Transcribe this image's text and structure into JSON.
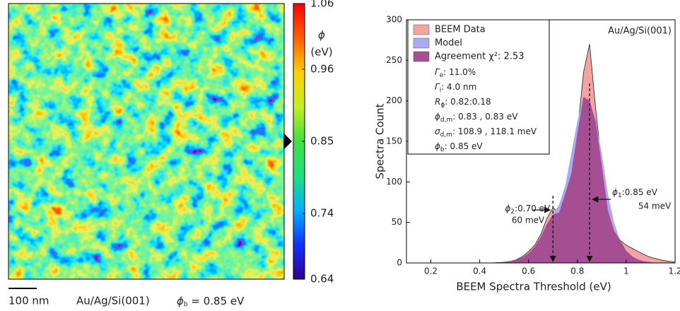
{
  "chart_data": [
    {
      "type": "colorbar",
      "label": "ϕ",
      "unit": "(eV)",
      "ylim": [
        0.64,
        1.06
      ],
      "yticks": [
        0.64,
        0.74,
        0.85,
        0.96,
        1.06
      ],
      "marker": 0.85,
      "colormap": [
        "#30008a",
        "#1030ff",
        "#00b0ff",
        "#20e080",
        "#40e040",
        "#c0f020",
        "#ffd000",
        "#ff6000",
        "#ff0000"
      ],
      "scale_bar": "100 nm",
      "sample": "Au/Ag/Si(001)",
      "phi_b": {
        "symbol": "ϕ",
        "sub": "b",
        "text": " = 0.85 eV"
      }
    },
    {
      "type": "area",
      "x_label": "BEEM Spectra Threshold (eV)",
      "y_label": "Spectra Count",
      "sample": "Au/Ag/Si(001)",
      "xlim": [
        0.1,
        1.2
      ],
      "xticks": [
        0.2,
        0.4,
        0.6,
        0.8,
        1,
        1.2
      ],
      "ylim": [
        0,
        300
      ],
      "yticks": [
        0,
        50,
        100,
        150,
        200,
        250,
        300
      ],
      "x": [
        0.45,
        0.5,
        0.525,
        0.55,
        0.575,
        0.6,
        0.625,
        0.65,
        0.675,
        0.7,
        0.725,
        0.75,
        0.775,
        0.8,
        0.825,
        0.85,
        0.875,
        0.9,
        0.925,
        0.95,
        0.975,
        1.0,
        1.025,
        1.05,
        1.075,
        1.1,
        1.125,
        1.15,
        1.175,
        1.2
      ],
      "series": [
        {
          "name": "BEEM Data",
          "color": "#f4a3a3",
          "line_color": "#222",
          "values": [
            0,
            1,
            2,
            4,
            8,
            14,
            22,
            35,
            55,
            68,
            62,
            85,
            110,
            160,
            235,
            270,
            190,
            120,
            65,
            40,
            28,
            22,
            18,
            14,
            10,
            7,
            5,
            3,
            2,
            1
          ]
        },
        {
          "name": "Model",
          "color": "#aaaaf0",
          "values": [
            0,
            1,
            2,
            4,
            7,
            12,
            20,
            32,
            48,
            60,
            72,
            95,
            135,
            175,
            205,
            200,
            175,
            135,
            85,
            50,
            28,
            15,
            8,
            4,
            2,
            1,
            0,
            0,
            0,
            0
          ]
        },
        {
          "name": "Agreement χ²: 2.53",
          "color": "#a54f92",
          "values": [
            0,
            1,
            2,
            4,
            7,
            12,
            20,
            32,
            48,
            60,
            62,
            85,
            110,
            160,
            205,
            200,
            175,
            120,
            65,
            40,
            28,
            15,
            8,
            4,
            2,
            1,
            0,
            0,
            0,
            0
          ]
        }
      ],
      "parameters": [
        {
          "symbol": "Γ",
          "sub": "e",
          "text": ": 11.0%"
        },
        {
          "symbol": "Γ",
          "sub": "i",
          "text": ": 4.0 nm"
        },
        {
          "symbol": "R",
          "sub": "ϕ",
          "text": ": 0.82:0.18"
        },
        {
          "symbol": "ϕ",
          "sub": "d,m",
          "text": ": 0.83 , 0.83 eV"
        },
        {
          "symbol": "σ",
          "sub": "d,m",
          "text": ": 108.9 , 118.1 meV"
        },
        {
          "symbol": "ϕ",
          "sub": "b",
          "text": ": 0.85 eV"
        }
      ],
      "peaks": [
        {
          "symbol": "ϕ",
          "sub": "1",
          "text": ":0.85 eV",
          "width": "54 meV",
          "x": 0.85
        },
        {
          "symbol": "ϕ",
          "sub": "2",
          "text": ":0.70 eV",
          "width": "60 meV",
          "x": 0.7
        }
      ]
    }
  ]
}
